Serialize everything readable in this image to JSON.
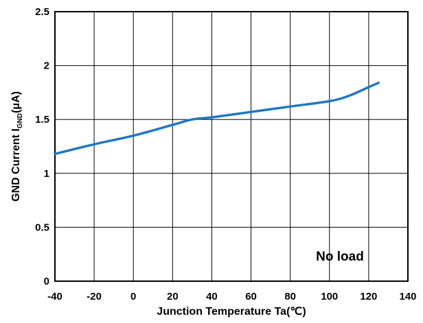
{
  "chart_data": {
    "type": "line",
    "xlabel": "Junction Temperature Ta(℃)",
    "ylabel_prefix": "GND Current I",
    "ylabel_sub": "GND",
    "ylabel_suffix": "(μA)",
    "xlim": [
      -40,
      140
    ],
    "ylim": [
      0,
      2.5
    ],
    "xticks": [
      -40,
      -20,
      0,
      20,
      40,
      60,
      80,
      100,
      120,
      140
    ],
    "yticks": [
      0,
      0.5,
      1,
      1.5,
      2,
      2.5
    ],
    "xtick_labels": [
      "-40",
      "-20",
      "0",
      "20",
      "40",
      "60",
      "80",
      "100",
      "120",
      "140"
    ],
    "ytick_labels": [
      "0",
      "0.5",
      "1",
      "1.5",
      "2",
      "2.5"
    ],
    "grid": true,
    "annotation": "No load",
    "line_color": "#1f77c4",
    "series": [
      {
        "x": [
          -40,
          -20,
          0,
          20,
          30,
          40,
          60,
          80,
          100,
          110,
          120,
          125
        ],
        "values": [
          1.18,
          1.27,
          1.35,
          1.45,
          1.5,
          1.52,
          1.57,
          1.62,
          1.67,
          1.72,
          1.8,
          1.84
        ]
      }
    ]
  }
}
